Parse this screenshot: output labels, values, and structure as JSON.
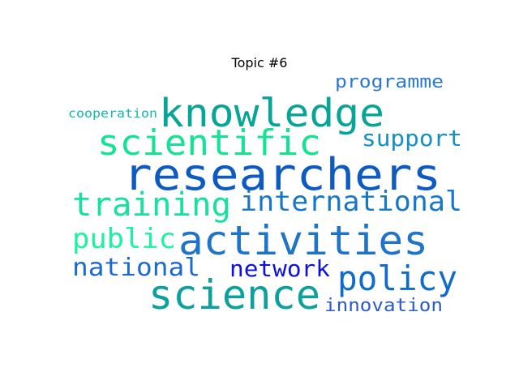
{
  "title": "Topic #6",
  "words": [
    {
      "text": "researchers",
      "color": "#0d5ac2"
    },
    {
      "text": "activities",
      "color": "#1f74c8"
    },
    {
      "text": "knowledge",
      "color": "#08a596"
    },
    {
      "text": "science",
      "color": "#0ca09e"
    },
    {
      "text": "scientific",
      "color": "#14e394"
    },
    {
      "text": "training",
      "color": "#17e1a0"
    },
    {
      "text": "international",
      "color": "#1678c9"
    },
    {
      "text": "policy",
      "color": "#106bcd"
    },
    {
      "text": "public",
      "color": "#1cf3a0"
    },
    {
      "text": "national",
      "color": "#1b6ad3"
    },
    {
      "text": "network",
      "color": "#0c10e0"
    },
    {
      "text": "support",
      "color": "#1590c4"
    },
    {
      "text": "programme",
      "color": "#2a7ad0"
    },
    {
      "text": "innovation",
      "color": "#2c5acd"
    },
    {
      "text": "cooperation",
      "color": "#13b8b0"
    }
  ]
}
